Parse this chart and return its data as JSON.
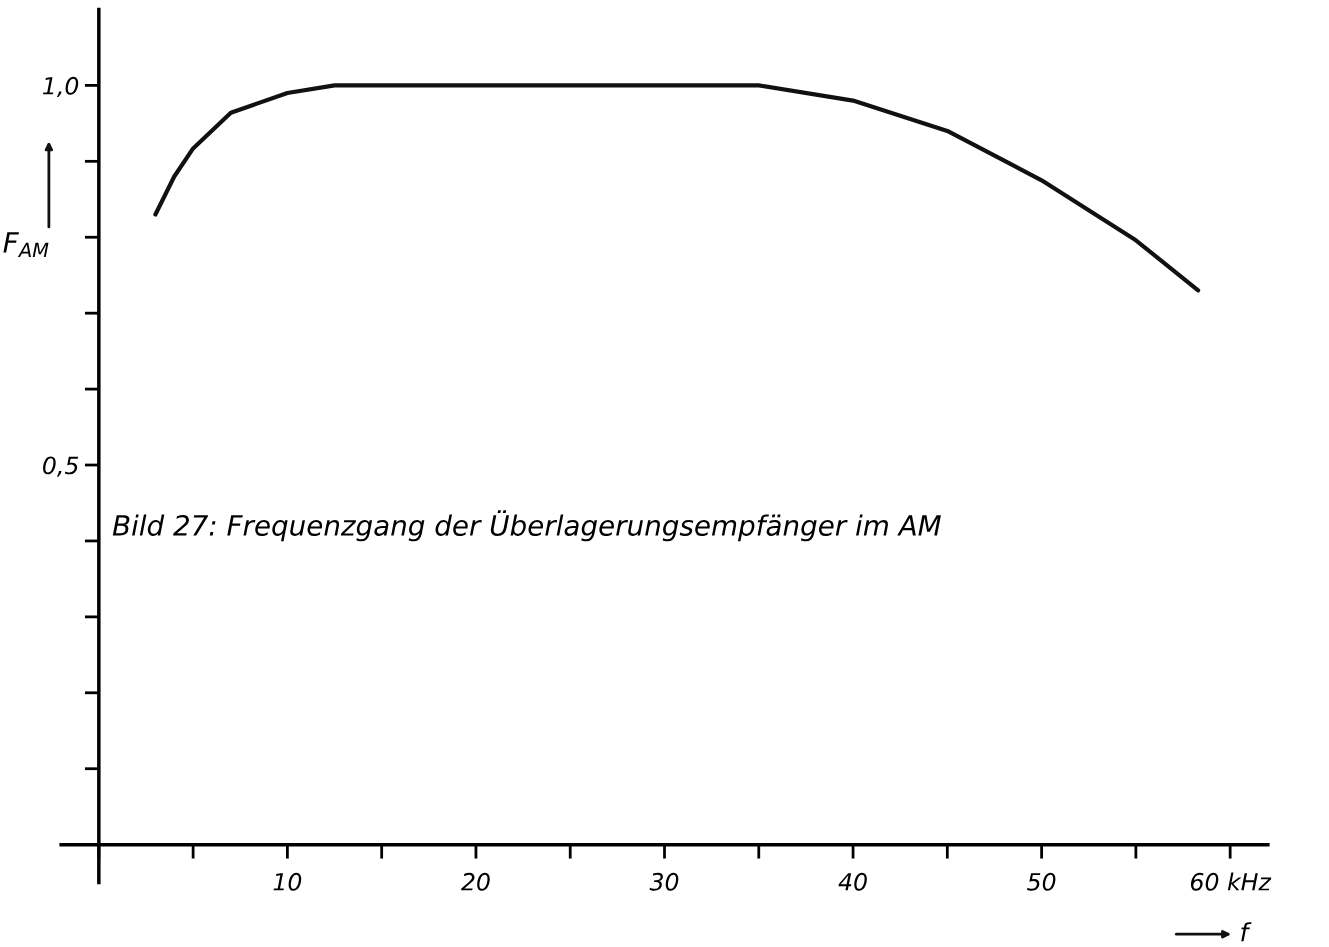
{
  "chart_data": {
    "type": "line",
    "xlabel": "f",
    "ylabel": "F$_{AM}$",
    "annotations": [
      "Bild 27: Frequenzgang der Überlagerungsempfänger im AM"
    ],
    "x": [
      3,
      4,
      5,
      7,
      10,
      12.5,
      20,
      30,
      35,
      40,
      45,
      50,
      55,
      58.3
    ],
    "series": [
      {
        "color": "#111111",
        "values": [
          0.83,
          0.88,
          0.917,
          0.964,
          0.99,
          1.0,
          1.0,
          1.0,
          1.0,
          0.98,
          0.94,
          0.875,
          0.796,
          0.73
        ]
      }
    ],
    "xlim": [
      -2,
      62
    ],
    "ylim": [
      -0.05,
      1.1
    ],
    "xticks": [
      {
        "value": 0,
        "label": null
      },
      {
        "value": 5,
        "label": null
      },
      10,
      {
        "value": 15,
        "label": null
      },
      20,
      {
        "value": 25,
        "label": null
      },
      30,
      {
        "value": 35,
        "label": null
      },
      40,
      {
        "value": 45,
        "label": null
      },
      50,
      {
        "value": 55,
        "label": null
      },
      {
        "value": 60,
        "label": "60 kHz"
      }
    ],
    "yticks": [
      {
        "value": 0,
        "label": null
      },
      {
        "value": 0.1,
        "label": null
      },
      {
        "value": 0.2,
        "label": null
      },
      {
        "value": 0.3,
        "label": null
      },
      {
        "value": 0.4,
        "label": null
      },
      {
        "value": 0.5,
        "label": "0,5"
      },
      {
        "value": 0.6,
        "label": null
      },
      {
        "value": 0.7,
        "label": null
      },
      {
        "value": 0.8,
        "label": null
      },
      {
        "value": 0.9,
        "label": null
      },
      {
        "value": 1.0,
        "label": "1,0"
      }
    ],
    "grid": false,
    "legend": false,
    "marker": "none",
    "line_style": "solid"
  }
}
